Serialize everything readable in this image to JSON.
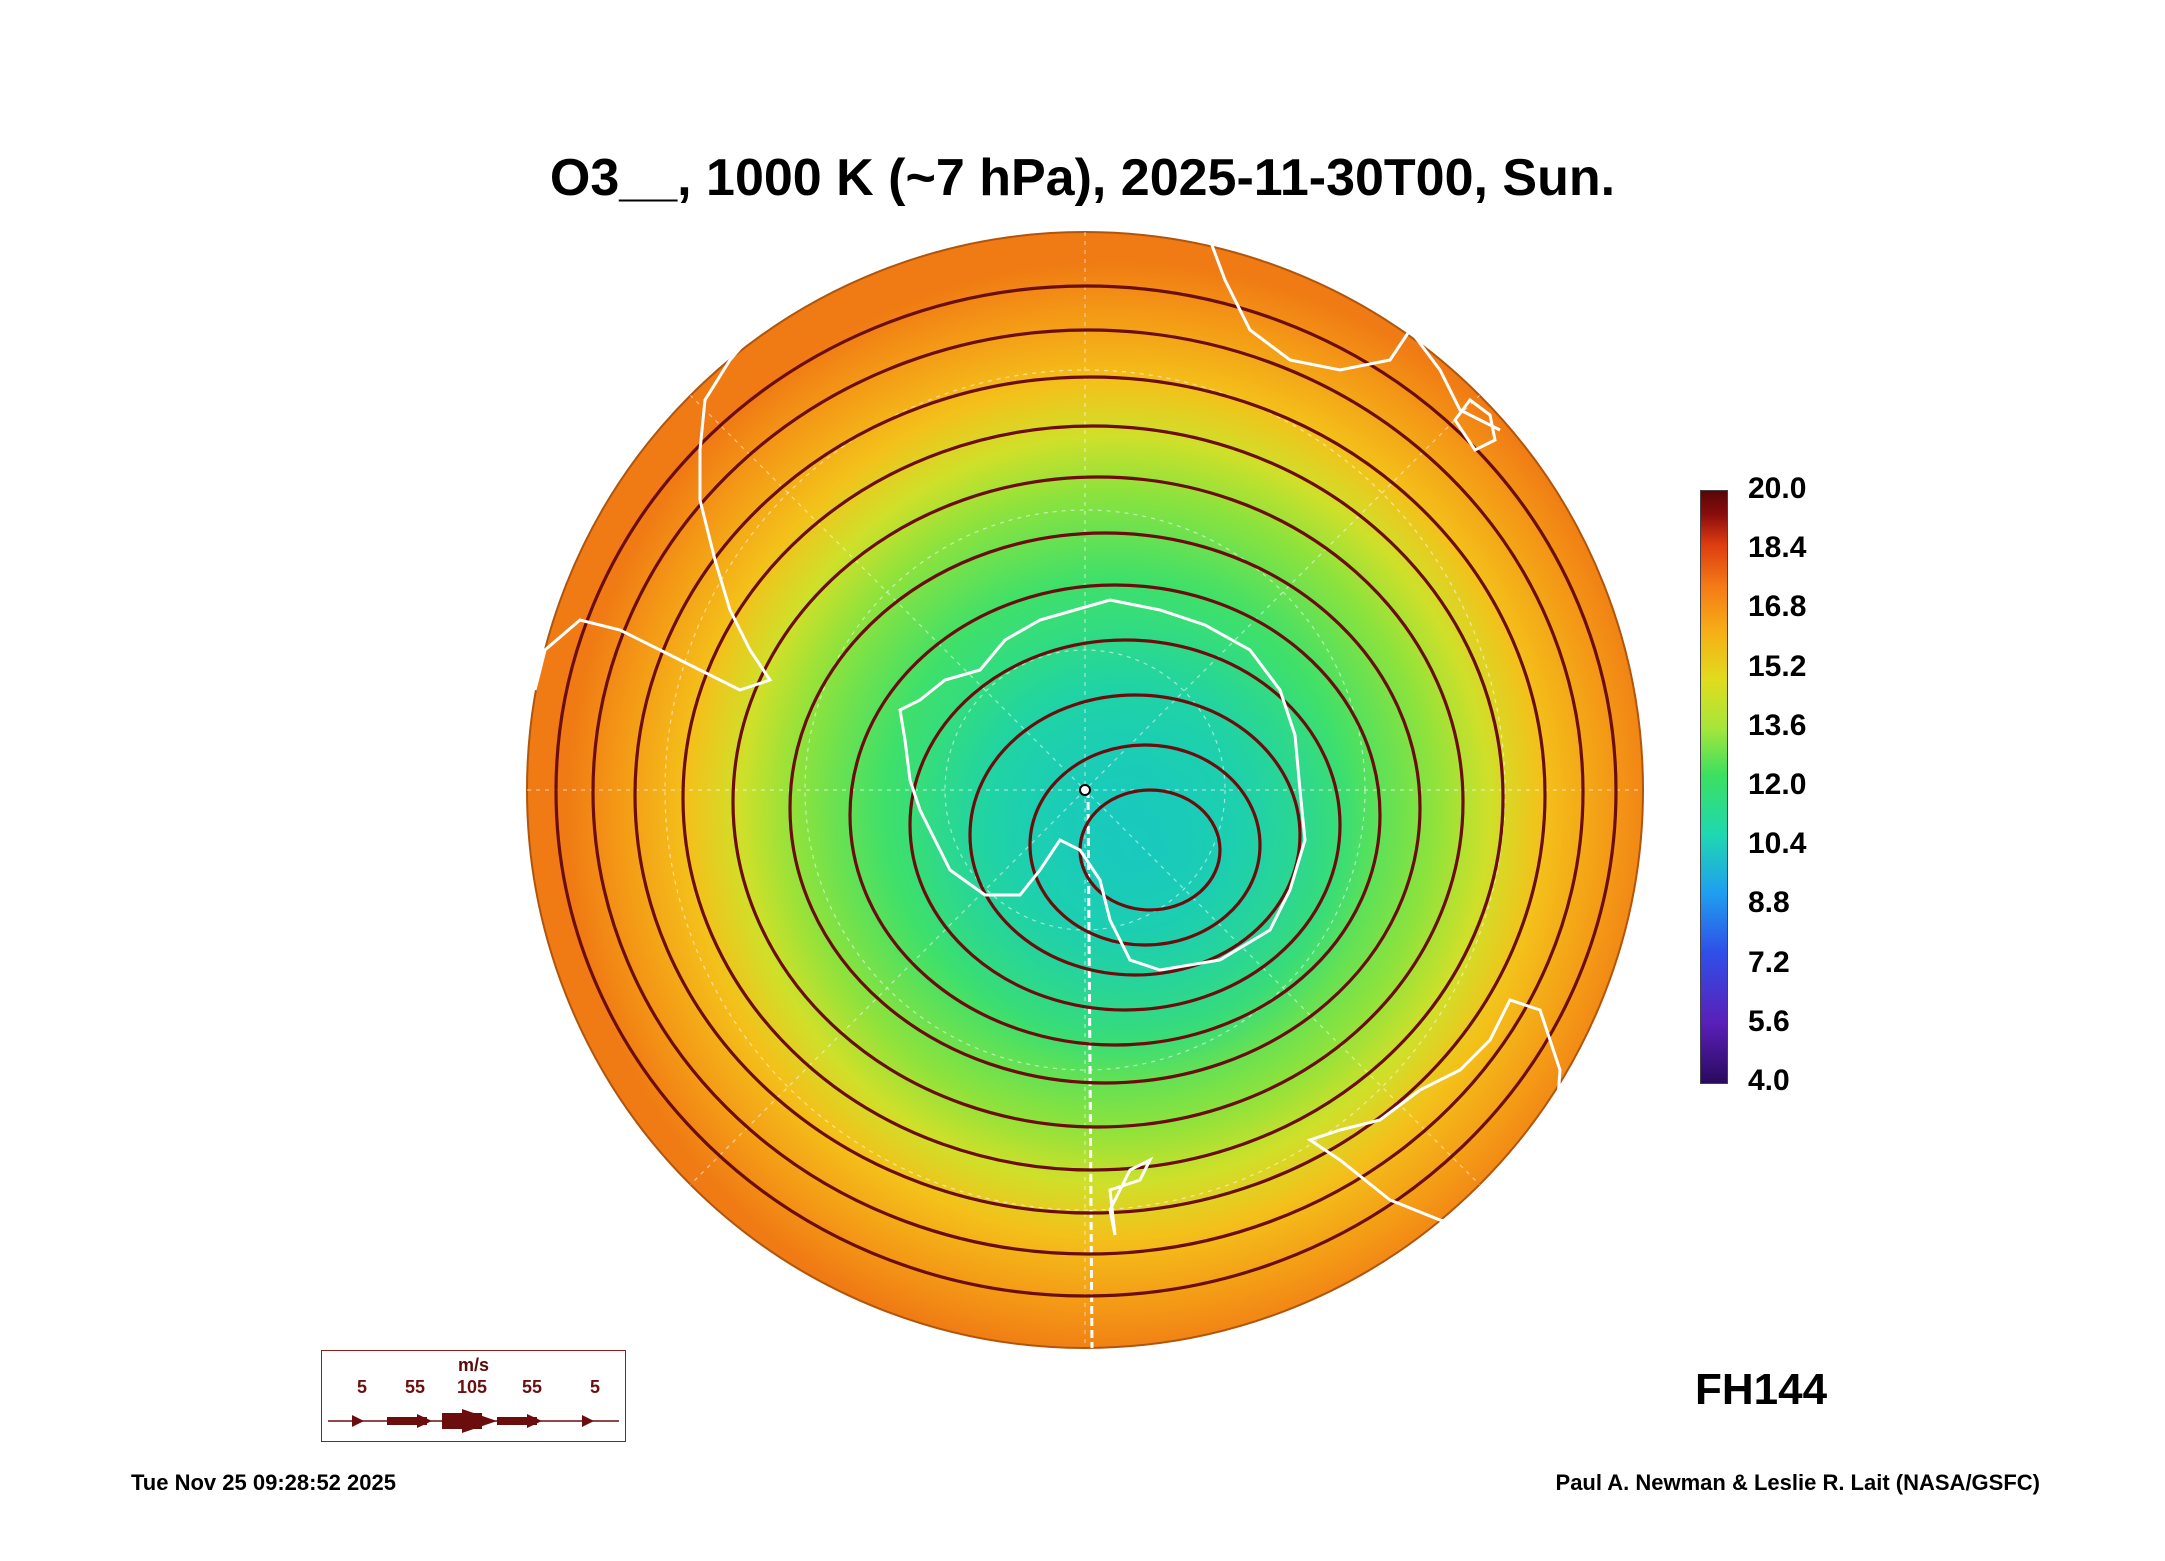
{
  "title": "O3__, 1000 K (~7 hPa), 2025-11-30T00, Sun.",
  "colorbar": {
    "labels": [
      "20.0",
      "18.4",
      "16.8",
      "15.2",
      "13.6",
      "12.0",
      "10.4",
      "8.8",
      "7.2",
      "5.6",
      "4.0"
    ],
    "min": 4.0,
    "max": 20.0
  },
  "forecast_hour": "FH144",
  "legend": {
    "unit": "m/s",
    "speeds": [
      "5",
      "55",
      "105",
      "55",
      "5"
    ]
  },
  "timestamp": "Tue Nov 25 09:28:52 2025",
  "credit": "Paul A. Newman & Leslie R. Lait (NASA/GSFC)",
  "colors": {
    "streamline": "#6b0d0d",
    "coastline": "#ffffff",
    "outer_band": "#f4a014",
    "vortex_core": "#1fd0a8"
  }
}
